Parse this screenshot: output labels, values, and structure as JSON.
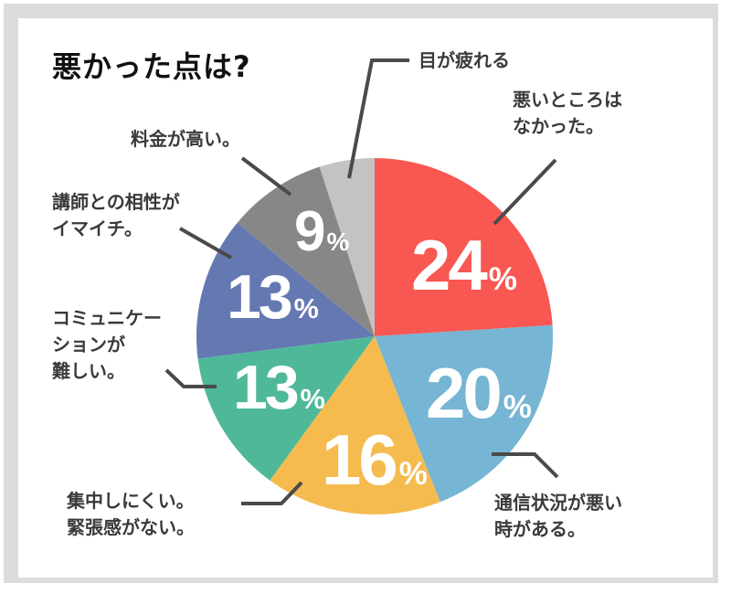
{
  "chart_data": {
    "type": "pie",
    "title": "悪かった点は?",
    "start_angle": "12 o'clock",
    "direction": "clockwise",
    "slices": [
      {
        "label": "悪いところはなかった。",
        "value": 24,
        "color": "#f95752"
      },
      {
        "label": "通信状況が悪い時がある。",
        "value": 20,
        "color": "#76b5d3"
      },
      {
        "label": "集中しにくい。緊張感がない。",
        "value": 16,
        "color": "#f5bb4f"
      },
      {
        "label": "コミュニケーションが難しい。",
        "value": 13,
        "color": "#4fb899"
      },
      {
        "label": "講師との相性がイマイチ。",
        "value": 13,
        "color": "#6478b2"
      },
      {
        "label": "料金が高い。",
        "value": 9,
        "color": "#878787"
      },
      {
        "label": "目が疲れる",
        "value": 5,
        "color": "#c3c3c3"
      }
    ],
    "value_suffix": "%"
  },
  "title": "悪かった点は?",
  "labels": {
    "none": "悪いところは\nなかった。",
    "network": "通信状況が悪い\n時がある。",
    "focus": "集中しにくい。\n緊張感がない。",
    "communication": "コミュニケー\nションが\n難しい。",
    "teacher": "講師との相性が\nイマイチ。",
    "price": "料金が高い。",
    "eyes": "目が疲れる"
  },
  "percent_labels": {
    "none": "24",
    "network": "20",
    "focus": "16",
    "communication": "13",
    "teacher": "13",
    "price": "9",
    "sign": "%"
  }
}
